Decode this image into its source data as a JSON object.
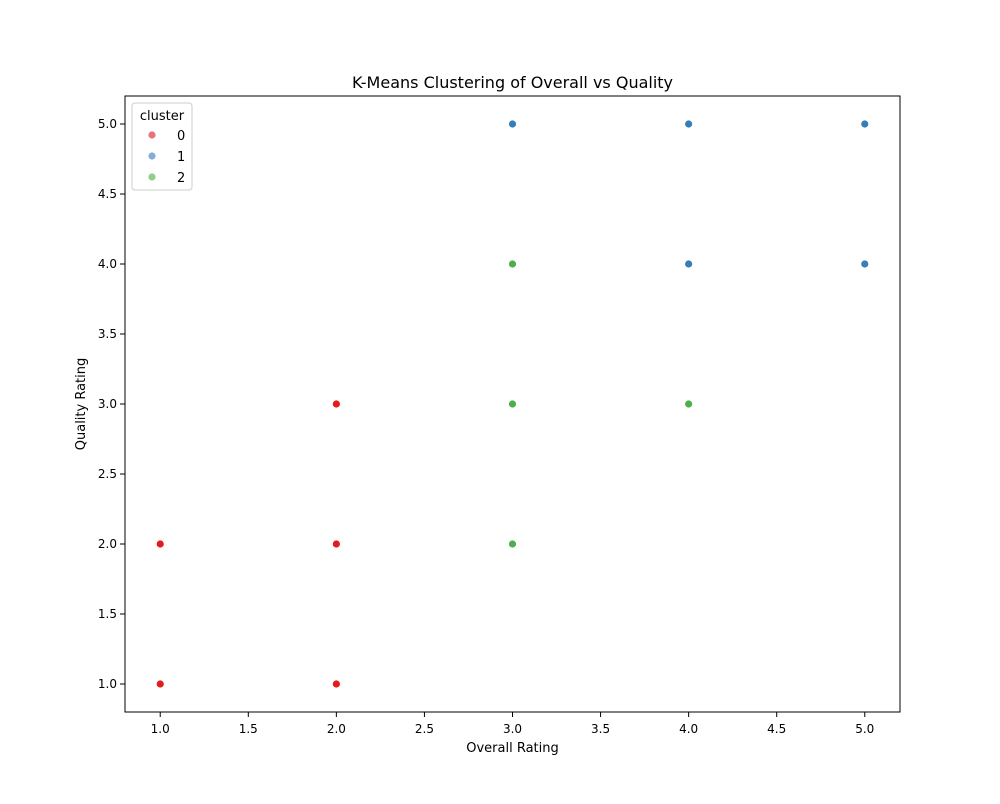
{
  "chart_data": {
    "type": "scatter",
    "title": "K-Means Clustering of Overall vs Quality",
    "xlabel": "Overall Rating",
    "ylabel": "Quality Rating",
    "xlim": [
      0.8,
      5.2
    ],
    "ylim": [
      0.8,
      5.2
    ],
    "xticks": [
      "1.0",
      "1.5",
      "2.0",
      "2.5",
      "3.0",
      "3.5",
      "4.0",
      "4.5",
      "5.0"
    ],
    "yticks": [
      "1.0",
      "1.5",
      "2.0",
      "2.5",
      "3.0",
      "3.5",
      "4.0",
      "4.5",
      "5.0"
    ],
    "grid": false,
    "legend": {
      "title": "cluster",
      "position": "top-left",
      "entries": [
        "0",
        "1",
        "2"
      ]
    },
    "series": [
      {
        "name": "0",
        "color": "#e41a1c",
        "legend_color": "#e8737a",
        "points": [
          [
            1,
            1
          ],
          [
            1,
            2
          ],
          [
            2,
            1
          ],
          [
            2,
            2
          ],
          [
            2,
            3
          ]
        ]
      },
      {
        "name": "1",
        "color": "#377eb8",
        "legend_color": "#86aed2",
        "points": [
          [
            3,
            5
          ],
          [
            4,
            5
          ],
          [
            5,
            5
          ],
          [
            4,
            4
          ],
          [
            5,
            4
          ]
        ]
      },
      {
        "name": "2",
        "color": "#4daf4a",
        "legend_color": "#90cf8a",
        "points": [
          [
            3,
            4
          ],
          [
            3,
            3
          ],
          [
            3,
            2
          ],
          [
            4,
            3
          ]
        ]
      }
    ]
  }
}
